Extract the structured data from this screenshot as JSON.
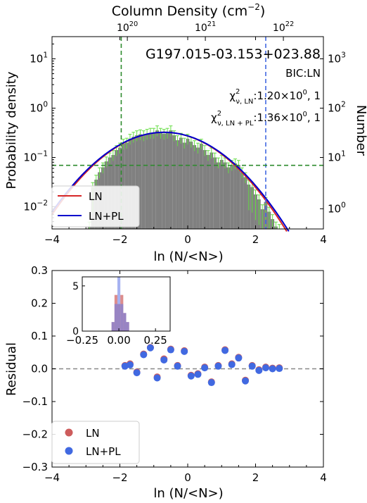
{
  "chart_data": [
    {
      "type": "bar",
      "title": "G197.015-03.153+023.88",
      "xlabel": "ln (N/<N>)",
      "ylabel": "Probability density",
      "ylabel_right": "Number",
      "xlabel_top": "Column Density (cm",
      "xlabel_top_sup": "−2",
      "xlabel_top_close": ")",
      "xlim": [
        -4,
        4
      ],
      "ylim_log10": [
        -2.45,
        1.45
      ],
      "yscale": "log",
      "x_ticks": [
        "−4",
        "−2",
        "0",
        "2",
        "4"
      ],
      "y_ticks": [
        {
          "base": "10",
          "exp": "−2",
          "log": -2
        },
        {
          "base": "10",
          "exp": "−1",
          "log": -1
        },
        {
          "base": "10",
          "exp": "0",
          "log": 0
        },
        {
          "base": "10",
          "exp": "1",
          "log": 1
        }
      ],
      "right_ticks": [
        {
          "base": "10",
          "exp": "0",
          "log": -2.04
        },
        {
          "base": "10",
          "exp": "1",
          "log": -1.0
        },
        {
          "base": "10",
          "exp": "2",
          "log": 0.0
        },
        {
          "base": "10",
          "exp": "3",
          "log": 1.0
        }
      ],
      "top_ticks": [
        {
          "base": "10",
          "exp": "20",
          "x": -1.78
        },
        {
          "base": "10",
          "exp": "21",
          "x": 0.52
        },
        {
          "base": "10",
          "exp": "22",
          "x": 2.82
        }
      ],
      "annotation_bic": "BIC:LN",
      "annotation_chi_ln": {
        "chi": "χ",
        "sup": "2",
        "sub": "ν, LN",
        "value": ":1.20×10",
        "exp": "0",
        "tail": ", 1"
      },
      "annotation_chi_lnpl": {
        "chi": "χ",
        "sup": "2",
        "sub": "ν, LN + PL",
        "value": ":1.36×10",
        "exp": "0",
        "tail": ", 1"
      },
      "vlines": [
        {
          "x": -1.96,
          "color": "#2e8b2e"
        },
        {
          "x": 2.3,
          "color": "#4169e1"
        }
      ],
      "hline_log10": -1.16,
      "bins_x": [
        -2.9,
        -2.8,
        -2.7,
        -2.6,
        -2.5,
        -2.4,
        -2.3,
        -2.2,
        -2.1,
        -2.0,
        -1.9,
        -1.8,
        -1.7,
        -1.6,
        -1.5,
        -1.4,
        -1.3,
        -1.2,
        -1.1,
        -1.0,
        -0.9,
        -0.8,
        -0.7,
        -0.6,
        -0.5,
        -0.4,
        -0.3,
        -0.2,
        -0.1,
        0.0,
        0.1,
        0.2,
        0.3,
        0.4,
        0.5,
        0.6,
        0.7,
        0.8,
        0.9,
        1.0,
        1.1,
        1.2,
        1.3,
        1.4,
        1.5,
        1.6,
        1.7,
        1.8,
        1.9,
        2.0,
        2.1,
        2.2,
        2.3,
        2.4,
        2.5,
        2.6,
        2.7
      ],
      "bin_width": 0.1,
      "density_log10": [
        -2.4,
        -1.6,
        -1.45,
        -1.3,
        -1.2,
        -1.08,
        -1.0,
        -0.95,
        -0.85,
        -0.8,
        -0.72,
        -0.7,
        -0.62,
        -0.58,
        -0.55,
        -0.53,
        -0.55,
        -0.52,
        -0.5,
        -0.5,
        -0.45,
        -0.5,
        -0.52,
        -0.5,
        -0.45,
        -0.55,
        -0.65,
        -0.6,
        -0.7,
        -0.62,
        -0.68,
        -0.75,
        -0.8,
        -0.72,
        -0.85,
        -0.95,
        -0.9,
        -1.0,
        -1.1,
        -1.05,
        -1.1,
        -1.2,
        -1.15,
        -1.12,
        -1.15,
        -1.3,
        -1.4,
        -1.55,
        -1.6,
        -1.75,
        -1.85,
        -2.05,
        -1.9,
        -2.1,
        -2.25,
        -2.4,
        -2.45
      ],
      "series": [
        {
          "name": "LN",
          "color": "#d62728",
          "mu": -0.7,
          "sigma": 1.19,
          "peak_log10": -0.49
        },
        {
          "name": "LN+PL",
          "color": "#0000cd",
          "mu": -0.7,
          "sigma": 1.21,
          "peak_log10": -0.49
        }
      ],
      "legend": "bottom-left"
    },
    {
      "type": "scatter",
      "xlabel": "ln (N/<N>)",
      "ylabel": "Residual",
      "xlim": [
        -4,
        4
      ],
      "ylim": [
        -0.3,
        0.3
      ],
      "x_ticks": [
        "−4",
        "−2",
        "0",
        "2",
        "4"
      ],
      "y_ticks": [
        "−0.3",
        "−0.2",
        "−0.1",
        "0.0",
        "0.1",
        "0.2",
        "0.3"
      ],
      "series": [
        {
          "name": "LN",
          "color": "#cd5c5c",
          "x": [
            -1.85,
            -1.7,
            -1.5,
            -1.3,
            -1.1,
            -0.9,
            -0.7,
            -0.5,
            -0.3,
            -0.1,
            0.1,
            0.3,
            0.5,
            0.7,
            0.9,
            1.1,
            1.3,
            1.5,
            1.7,
            1.9,
            2.1,
            2.3,
            2.5,
            2.7
          ],
          "y": [
            0.01,
            0.015,
            -0.01,
            0.045,
            0.065,
            -0.025,
            0.03,
            0.06,
            0.01,
            0.055,
            -0.02,
            -0.015,
            0.005,
            -0.04,
            0.01,
            0.058,
            0.015,
            0.035,
            -0.035,
            0.01,
            -0.003,
            0.005,
            0.002,
            0.003
          ]
        },
        {
          "name": "LN+PL",
          "color": "#4169e1",
          "x": [
            -1.85,
            -1.7,
            -1.5,
            -1.3,
            -1.1,
            -0.9,
            -0.7,
            -0.5,
            -0.3,
            -0.1,
            0.1,
            0.3,
            0.5,
            0.7,
            0.9,
            1.1,
            1.3,
            1.5,
            1.7,
            1.9,
            2.1,
            2.3,
            2.5,
            2.7
          ],
          "y": [
            0.008,
            0.012,
            -0.012,
            0.043,
            0.064,
            -0.028,
            0.027,
            0.058,
            0.008,
            0.053,
            -0.022,
            -0.017,
            0.003,
            -0.042,
            0.008,
            0.056,
            0.013,
            0.033,
            -0.037,
            0.008,
            -0.005,
            0.003,
            0.0,
            0.001
          ]
        }
      ],
      "hline": 0,
      "legend": "bottom-left",
      "inset": {
        "type": "histogram",
        "xlim": [
          -0.25,
          0.35
        ],
        "ylim": [
          0,
          6
        ],
        "x_ticks": [
          "−0.25",
          "0.00",
          "0.25"
        ],
        "y_ticks": [
          "0",
          "5"
        ],
        "bins": [
          -0.04,
          -0.02,
          0.0,
          0.02,
          0.04,
          0.06
        ],
        "ln_counts": [
          1,
          4,
          3,
          4,
          2,
          1
        ],
        "lnpl_counts": [
          1,
          3,
          6,
          3,
          2,
          1
        ]
      }
    }
  ]
}
